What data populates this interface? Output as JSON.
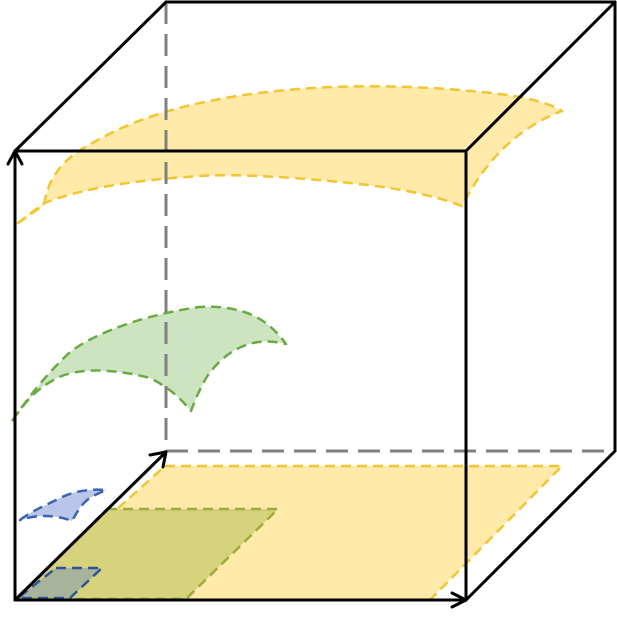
{
  "diagram": {
    "kind": "3d-cube-with-surfaces",
    "colors": {
      "background": "#ffffff",
      "cube_edge": "#000000",
      "hidden_edge": "#808080",
      "yellow_fill": "#ffeaaa",
      "yellow_stroke": "#f2c531",
      "green_fill": "#cde4c0",
      "green_stroke": "#6aaa45",
      "blue_fill": "#b9c6e9",
      "blue_stroke": "#3b64b3",
      "olive_fill": "#d7d27c",
      "olive_stroke": "#9aac3a",
      "gray_fill": "#a7b39a",
      "gray_stroke": "#2f5597"
    },
    "elements": [
      "cube-frame",
      "hidden-edges",
      "axis-arrows",
      "top-surface",
      "middle-surface",
      "small-surface",
      "base-projection-large",
      "base-projection-medium",
      "base-projection-small"
    ]
  }
}
